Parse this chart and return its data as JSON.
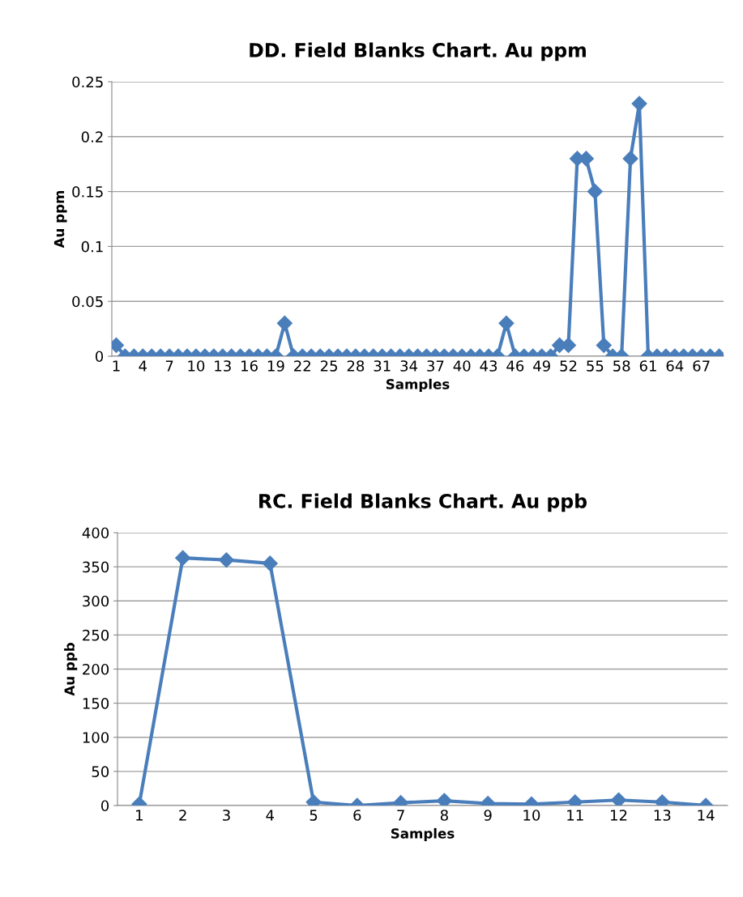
{
  "chart_data": [
    {
      "type": "line",
      "title": "DD. Field Blanks Chart. Au ppm",
      "xlabel": "Samples",
      "ylabel": "Au ppm",
      "categories": [
        "1",
        null,
        null,
        "4",
        null,
        null,
        "7",
        null,
        null,
        "10",
        null,
        null,
        "13",
        null,
        null,
        "16",
        null,
        null,
        "19",
        null,
        null,
        "22",
        null,
        null,
        "25",
        null,
        null,
        "28",
        null,
        null,
        "31",
        null,
        null,
        "34",
        null,
        null,
        "37",
        null,
        null,
        "40",
        null,
        null,
        "43",
        null,
        null,
        "46",
        null,
        null,
        "49",
        null,
        null,
        "52",
        null,
        null,
        "55",
        null,
        null,
        "58",
        null,
        null,
        "61",
        null,
        null,
        "64",
        null,
        null,
        "67",
        null,
        null
      ],
      "series": [
        {
          "color": "#4a7ebb",
          "values": [
            0.01,
            0,
            0,
            0,
            0,
            0,
            0,
            0,
            0,
            0,
            0,
            0,
            0,
            0,
            0,
            0,
            0,
            0,
            0,
            0.03,
            0,
            0,
            0,
            0,
            0,
            0,
            0,
            0,
            0,
            0,
            0,
            0,
            0,
            0,
            0,
            0,
            0,
            0,
            0,
            0,
            0,
            0,
            0,
            0,
            0.03,
            0,
            0,
            0,
            0,
            0,
            0.01,
            0.01,
            0.18,
            0.18,
            0.15,
            0.01,
            0,
            0,
            0.18,
            0.23,
            0,
            0,
            0,
            0,
            0,
            0,
            0,
            0,
            0
          ]
        }
      ],
      "ylim": [
        0,
        0.25
      ],
      "yticks": [
        0,
        0.05,
        0.1,
        0.15,
        0.2,
        0.25
      ],
      "grid": "y",
      "marker": "diamond",
      "line_style": "solid",
      "legend": false
    },
    {
      "type": "line",
      "title": "RC. Field Blanks Chart. Au ppb",
      "xlabel": "Samples",
      "ylabel": "Au ppb",
      "categories": [
        "1",
        "2",
        "3",
        "4",
        "5",
        "6",
        "7",
        "8",
        "9",
        "10",
        "11",
        "12",
        "13",
        "14"
      ],
      "series": [
        {
          "color": "#4a7ebb",
          "values": [
            2,
            363,
            360,
            355,
            5,
            0,
            4,
            7,
            3,
            2,
            5,
            8,
            5,
            0
          ]
        }
      ],
      "ylim": [
        0,
        400
      ],
      "yticks": [
        0,
        50,
        100,
        150,
        200,
        250,
        300,
        350,
        400
      ],
      "grid": "y",
      "marker": "diamond",
      "line_style": "solid",
      "legend": false
    }
  ]
}
